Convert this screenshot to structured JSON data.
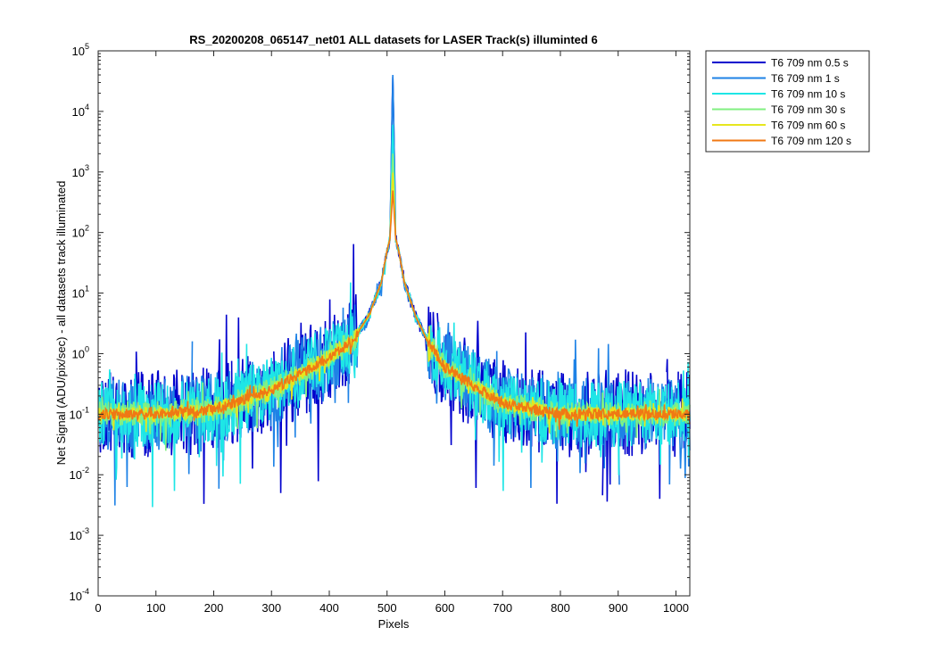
{
  "chart_data": {
    "type": "line",
    "title": "RS_20200208_065147_net01 ALL datasets for LASER  Track(s) illuminted 6",
    "xlabel": "Pixels",
    "ylabel": "Net Signal (ADU/pix/sec) - all datasets track illuminated",
    "xlim": [
      0,
      1024
    ],
    "ylim": [
      0.0001,
      100000
    ],
    "yscale": "log",
    "grid": false,
    "legend_position": "outside-top-right",
    "x_ticks": [
      0,
      100,
      200,
      300,
      400,
      500,
      600,
      700,
      800,
      900,
      1000
    ],
    "y_ticks": [
      {
        "base": "10",
        "exp": "-4",
        "value": 0.0001
      },
      {
        "base": "10",
        "exp": "-3",
        "value": 0.001
      },
      {
        "base": "10",
        "exp": "-2",
        "value": 0.01
      },
      {
        "base": "10",
        "exp": "-1",
        "value": 0.1
      },
      {
        "base": "10",
        "exp": "0",
        "value": 1
      },
      {
        "base": "10",
        "exp": "1",
        "value": 10
      },
      {
        "base": "10",
        "exp": "2",
        "value": 100
      },
      {
        "base": "10",
        "exp": "3",
        "value": 1000
      },
      {
        "base": "10",
        "exp": "4",
        "value": 10000
      },
      {
        "base": "10",
        "exp": "5",
        "value": 100000
      }
    ],
    "series": [
      {
        "name": "T6 709 nm 0.5 s",
        "color": "#0000cd",
        "saturation": 45000,
        "noise": 1.2,
        "dropouts": true,
        "x": [
          0,
          100,
          200,
          300,
          350,
          400,
          440,
          470,
          490,
          500,
          505,
          510,
          515,
          520,
          530,
          550,
          570,
          600,
          650,
          700,
          800,
          1024
        ],
        "y": [
          0.1,
          0.1,
          0.12,
          0.25,
          0.45,
          0.9,
          1.6,
          4.5,
          15,
          50,
          80,
          45000,
          80,
          50,
          15,
          4.0,
          1.6,
          0.6,
          0.3,
          0.15,
          0.1,
          0.1
        ]
      },
      {
        "name": "T6 709 nm 1 s",
        "color": "#1e82e6",
        "saturation": 40000,
        "noise": 1.0,
        "dropouts": true,
        "x": [
          0,
          100,
          200,
          300,
          350,
          400,
          440,
          470,
          490,
          500,
          505,
          510,
          515,
          520,
          530,
          550,
          570,
          600,
          650,
          700,
          800,
          1024
        ],
        "y": [
          0.1,
          0.1,
          0.12,
          0.25,
          0.45,
          0.9,
          1.6,
          4.5,
          15,
          50,
          80,
          40000,
          80,
          50,
          15,
          4.0,
          1.6,
          0.6,
          0.3,
          0.15,
          0.1,
          0.1
        ]
      },
      {
        "name": "T6 709 nm 10 s",
        "color": "#1ee6e6",
        "saturation": 6000,
        "noise": 0.9,
        "dropouts": false,
        "x": [
          0,
          100,
          200,
          300,
          350,
          400,
          440,
          470,
          490,
          500,
          505,
          510,
          515,
          520,
          530,
          550,
          570,
          600,
          650,
          700,
          800,
          1024
        ],
        "y": [
          0.1,
          0.1,
          0.12,
          0.25,
          0.45,
          0.9,
          1.6,
          4.5,
          15,
          50,
          80,
          6000,
          80,
          50,
          15,
          4.0,
          1.6,
          0.6,
          0.3,
          0.15,
          0.1,
          0.1
        ]
      },
      {
        "name": "T6 709 nm 30 s",
        "color": "#82f082",
        "saturation": 2000,
        "noise": 0.35,
        "dropouts": false,
        "x": [
          0,
          100,
          200,
          300,
          350,
          400,
          440,
          470,
          490,
          500,
          505,
          510,
          515,
          520,
          530,
          550,
          570,
          600,
          650,
          700,
          800,
          1024
        ],
        "y": [
          0.1,
          0.1,
          0.12,
          0.25,
          0.45,
          0.9,
          1.6,
          4.5,
          15,
          50,
          80,
          2000,
          80,
          50,
          15,
          4.0,
          1.6,
          0.6,
          0.3,
          0.15,
          0.1,
          0.1
        ]
      },
      {
        "name": "T6 709 nm 60 s",
        "color": "#e6e61e",
        "saturation": 1000,
        "noise": 0.2,
        "dropouts": false,
        "x": [
          0,
          100,
          200,
          300,
          350,
          400,
          440,
          470,
          490,
          500,
          505,
          510,
          515,
          520,
          530,
          550,
          570,
          600,
          650,
          700,
          800,
          1024
        ],
        "y": [
          0.1,
          0.1,
          0.12,
          0.25,
          0.45,
          0.9,
          1.6,
          4.5,
          15,
          50,
          80,
          1000,
          80,
          50,
          15,
          4.0,
          1.6,
          0.6,
          0.3,
          0.15,
          0.1,
          0.1
        ]
      },
      {
        "name": "T6 709 nm 120 s",
        "color": "#f07814",
        "saturation": 500,
        "noise": 0.15,
        "dropouts": false,
        "x": [
          0,
          100,
          200,
          300,
          350,
          400,
          440,
          470,
          490,
          500,
          505,
          510,
          515,
          520,
          530,
          550,
          570,
          600,
          650,
          700,
          800,
          1024
        ],
        "y": [
          0.1,
          0.1,
          0.12,
          0.25,
          0.45,
          0.9,
          1.6,
          4.5,
          15,
          50,
          80,
          500,
          80,
          50,
          15,
          4.0,
          1.6,
          0.6,
          0.3,
          0.15,
          0.1,
          0.1
        ]
      }
    ]
  }
}
